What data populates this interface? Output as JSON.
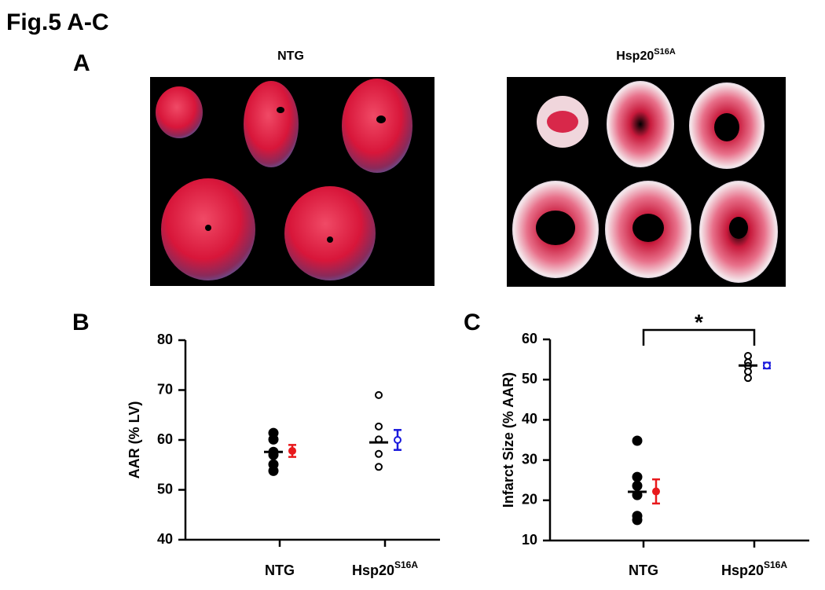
{
  "figure": {
    "title": "Fig.5 A-C"
  },
  "panel_a": {
    "panel": "A",
    "titles": [
      {
        "text": "NTG"
      },
      {
        "text": "Hsp20",
        "sup": "S16A"
      }
    ]
  },
  "chart_data": [
    {
      "type": "dotplot",
      "panel": "B",
      "y_label": "AAR  (% LV)",
      "categories": [
        "NTG",
        "Hsp20"
      ],
      "category_superscripts": [
        null,
        "S16A"
      ],
      "ylim": [
        40,
        80
      ],
      "yticks": [
        40,
        50,
        60,
        70,
        80
      ],
      "groups": [
        {
          "points": [
            61.4,
            60.1,
            57.6,
            57.0,
            55.1,
            53.8
          ],
          "filled": true,
          "mean": 57.6,
          "summary_mean": 57.8,
          "summary_error": 1.2,
          "summary_color": "#e8191c"
        },
        {
          "points": [
            69.0,
            62.7,
            60.1,
            57.2,
            54.6
          ],
          "filled": false,
          "mean": 59.5,
          "summary_mean": 60.0,
          "summary_error": 2.0,
          "summary_color": "#1a1adc"
        }
      ]
    },
    {
      "type": "dotplot",
      "panel": "C",
      "y_label": "Infarct Size (% AAR)",
      "categories": [
        "NTG",
        "Hsp20"
      ],
      "category_superscripts": [
        null,
        "S16A"
      ],
      "ylim": [
        10,
        60
      ],
      "yticks": [
        10,
        20,
        30,
        40,
        50,
        60
      ],
      "annotation": "*",
      "groups": [
        {
          "points": [
            34.8,
            25.8,
            23.6,
            21.3,
            16.1,
            15.1
          ],
          "filled": true,
          "mean": 22.1,
          "summary_mean": 22.2,
          "summary_error": 3.0,
          "summary_color": "#e8191c"
        },
        {
          "points": [
            55.9,
            54.3,
            53.4,
            52.0,
            50.4
          ],
          "filled": false,
          "mean": 53.5,
          "summary_mean": 53.5,
          "summary_error": 0.7,
          "summary_color": "#1a1adc"
        }
      ]
    }
  ]
}
